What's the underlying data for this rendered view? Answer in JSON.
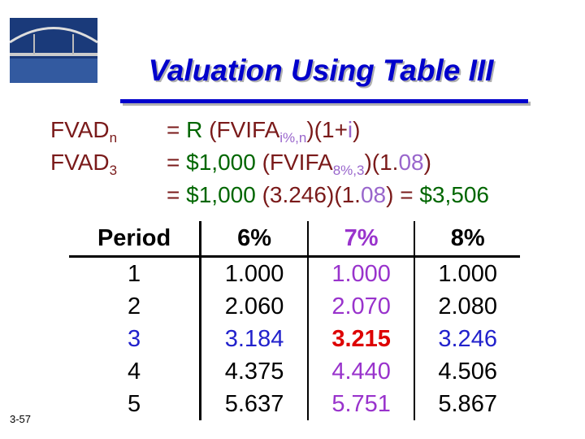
{
  "slide_number": "3-57",
  "title": "Valuation Using Table III",
  "formulas": [
    {
      "label": [
        {
          "text": "FVAD"
        },
        {
          "text": "n",
          "sub": true
        }
      ],
      "expression": [
        {
          "text": "= ",
          "color": "#7a1a1a"
        },
        {
          "text": "R ",
          "color": "#006600"
        },
        {
          "text": "(FVIFA",
          "color": "#7a1a1a"
        },
        {
          "text": "i%,n",
          "color": "#9966cc",
          "sub": true
        },
        {
          "text": ")(1+",
          "color": "#7a1a1a"
        },
        {
          "text": "i",
          "color": "#9966cc"
        },
        {
          "text": ")",
          "color": "#7a1a1a"
        }
      ]
    },
    {
      "label": [
        {
          "text": "FVAD"
        },
        {
          "text": "3",
          "sub": true
        }
      ],
      "expression": [
        {
          "text": "= ",
          "color": "#7a1a1a"
        },
        {
          "text": "$1,000 ",
          "color": "#006600"
        },
        {
          "text": "(FVIFA",
          "color": "#7a1a1a"
        },
        {
          "text": "8%,3",
          "color": "#9966cc",
          "sub": true
        },
        {
          "text": ")(1.",
          "color": "#7a1a1a"
        },
        {
          "text": "08",
          "color": "#9966cc"
        },
        {
          "text": ")",
          "color": "#7a1a1a"
        }
      ]
    },
    {
      "label": [],
      "expression": [
        {
          "text": "= ",
          "color": "#7a1a1a"
        },
        {
          "text": "$1,000 ",
          "color": "#006600"
        },
        {
          "text": "(3.246)(1.",
          "color": "#7a1a1a"
        },
        {
          "text": "08",
          "color": "#9966cc"
        },
        {
          "text": ") = ",
          "color": "#7a1a1a"
        },
        {
          "text": "$3,506",
          "color": "#006600"
        }
      ]
    }
  ],
  "table": {
    "header": [
      "Period",
      "6%",
      "7%",
      "8%"
    ],
    "rows": [
      [
        "1",
        "1.000",
        "1.000",
        "1.000"
      ],
      [
        "2",
        "2.060",
        "2.070",
        "2.080"
      ],
      [
        "3",
        "3.184",
        "3.215",
        "3.246"
      ],
      [
        "4",
        "4.375",
        "4.440",
        "4.506"
      ],
      [
        "5",
        "5.637",
        "5.751",
        "5.867"
      ]
    ]
  }
}
